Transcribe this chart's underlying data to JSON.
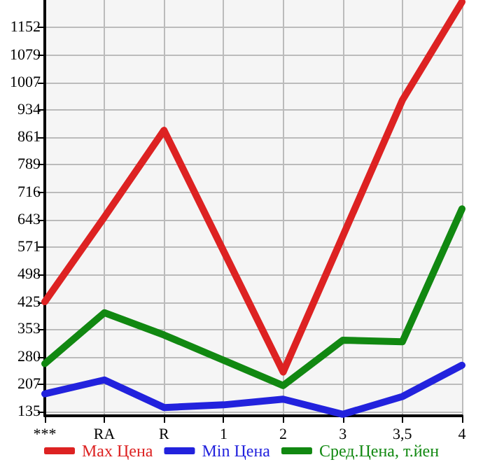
{
  "chart_data": {
    "type": "line",
    "categories": [
      "***",
      "RA",
      "R",
      "1",
      "2",
      "3",
      "3,5",
      "4"
    ],
    "series": [
      {
        "name": "Max Цена",
        "color": "#dd2222",
        "values": [
          426,
          650,
          880,
          560,
          240,
          600,
          960,
          1220
        ]
      },
      {
        "name": "Min Цена",
        "color": "#2222dd",
        "values": [
          182,
          219,
          146,
          153,
          168,
          128,
          175,
          258
        ]
      },
      {
        "name": "Сред.Цена, т.йен",
        "color": "#118811",
        "values": [
          262,
          397,
          338,
          271,
          204,
          324,
          320,
          672
        ]
      }
    ],
    "ylim": [
      124,
      1225
    ],
    "yticks": [
      135,
      207,
      280,
      353,
      425,
      498,
      571,
      643,
      716,
      789,
      861,
      934,
      1007,
      1079,
      1152
    ],
    "grid": true,
    "legend": "bottom",
    "marker": "none",
    "line_style": "solid"
  }
}
